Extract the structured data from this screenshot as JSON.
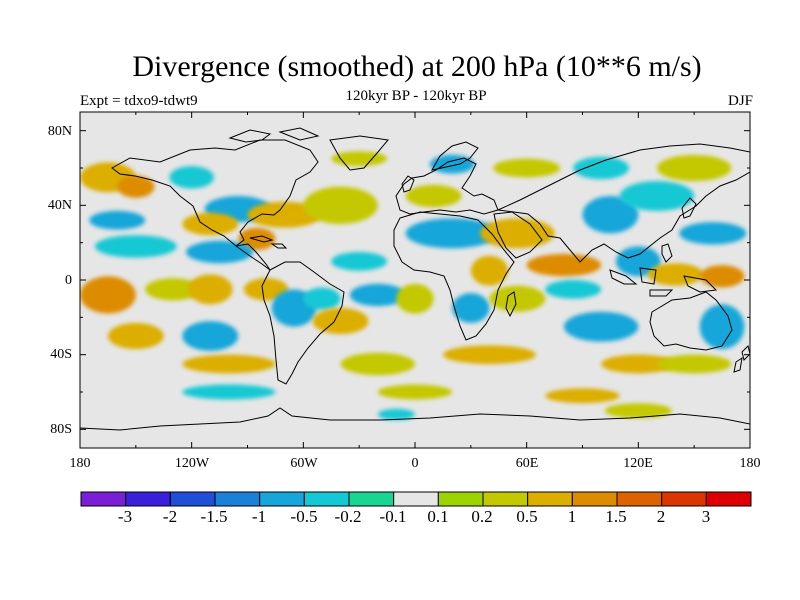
{
  "title": "Divergence (smoothed) at 200 hPa (10**6 m/s)",
  "subtitle": "120kyr BP - 120kyr BP",
  "experiment": "Expt = tdxo9-tdwt9",
  "season": "DJF",
  "map": {
    "projection": "cylindrical-equidistant",
    "lon_range": [
      -180,
      180
    ],
    "lat_range": [
      -90,
      90
    ],
    "background_color": "#e6e6e6",
    "coastline_color": "#000000",
    "lat_tick_labels": [
      "80N",
      "40N",
      "0",
      "40S",
      "80S"
    ],
    "lon_tick_labels": [
      "180",
      "120W",
      "60W",
      "0",
      "60E",
      "120E",
      "180"
    ]
  },
  "colorbar": {
    "labels": [
      "-3",
      "-2",
      "-1.5",
      "-1",
      "-0.5",
      "-0.2",
      "-0.1",
      "0.1",
      "0.2",
      "0.5",
      "1",
      "1.5",
      "2",
      "3"
    ],
    "colors": [
      "#7a1fd6",
      "#3a1fdb",
      "#1e4fd6",
      "#1c80db",
      "#16a6d9",
      "#14c8d4",
      "#19d493",
      "#e6e6e6",
      "#9bd400",
      "#c4c800",
      "#dcae00",
      "#dd8c00",
      "#dc6400",
      "#db3600",
      "#dc0000"
    ]
  },
  "field_blobs": [
    {
      "lon": -165,
      "lat": 55,
      "rx": 15,
      "ry": 8,
      "level": 10
    },
    {
      "lon": -150,
      "lat": 50,
      "rx": 10,
      "ry": 6,
      "level": 11
    },
    {
      "lon": -120,
      "lat": 55,
      "rx": 12,
      "ry": 6,
      "level": 5
    },
    {
      "lon": -95,
      "lat": 38,
      "rx": 18,
      "ry": 7,
      "level": 4
    },
    {
      "lon": -160,
      "lat": 32,
      "rx": 15,
      "ry": 5,
      "level": 4
    },
    {
      "lon": -110,
      "lat": 30,
      "rx": 15,
      "ry": 6,
      "level": 10
    },
    {
      "lon": -70,
      "lat": 35,
      "rx": 20,
      "ry": 7,
      "level": 10
    },
    {
      "lon": -85,
      "lat": 22,
      "rx": 10,
      "ry": 6,
      "level": 11
    },
    {
      "lon": -40,
      "lat": 40,
      "rx": 20,
      "ry": 10,
      "level": 9
    },
    {
      "lon": -150,
      "lat": 18,
      "rx": 22,
      "ry": 6,
      "level": 5
    },
    {
      "lon": -105,
      "lat": 15,
      "rx": 18,
      "ry": 6,
      "level": 4
    },
    {
      "lon": -165,
      "lat": -8,
      "rx": 15,
      "ry": 10,
      "level": 11
    },
    {
      "lon": -130,
      "lat": -5,
      "rx": 15,
      "ry": 6,
      "level": 9
    },
    {
      "lon": -150,
      "lat": -30,
      "rx": 15,
      "ry": 7,
      "level": 10
    },
    {
      "lon": -110,
      "lat": -30,
      "rx": 15,
      "ry": 8,
      "level": 4
    },
    {
      "lon": -110,
      "lat": -5,
      "rx": 12,
      "ry": 8,
      "level": 10
    },
    {
      "lon": -80,
      "lat": -5,
      "rx": 12,
      "ry": 6,
      "level": 10
    },
    {
      "lon": -65,
      "lat": -15,
      "rx": 12,
      "ry": 10,
      "level": 4
    },
    {
      "lon": -50,
      "lat": -10,
      "rx": 10,
      "ry": 6,
      "level": 5
    },
    {
      "lon": -40,
      "lat": -22,
      "rx": 15,
      "ry": 7,
      "level": 10
    },
    {
      "lon": -20,
      "lat": -8,
      "rx": 15,
      "ry": 6,
      "level": 4
    },
    {
      "lon": -30,
      "lat": 10,
      "rx": 15,
      "ry": 5,
      "level": 5
    },
    {
      "lon": 0,
      "lat": -10,
      "rx": 10,
      "ry": 8,
      "level": 9
    },
    {
      "lon": 20,
      "lat": 25,
      "rx": 25,
      "ry": 8,
      "level": 4
    },
    {
      "lon": 10,
      "lat": 45,
      "rx": 15,
      "ry": 6,
      "level": 9
    },
    {
      "lon": 55,
      "lat": 25,
      "rx": 20,
      "ry": 8,
      "level": 10
    },
    {
      "lon": 40,
      "lat": 5,
      "rx": 10,
      "ry": 8,
      "level": 10
    },
    {
      "lon": 30,
      "lat": -15,
      "rx": 10,
      "ry": 8,
      "level": 4
    },
    {
      "lon": 55,
      "lat": -10,
      "rx": 15,
      "ry": 7,
      "level": 9
    },
    {
      "lon": 80,
      "lat": 8,
      "rx": 20,
      "ry": 6,
      "level": 11
    },
    {
      "lon": 85,
      "lat": -5,
      "rx": 15,
      "ry": 5,
      "level": 5
    },
    {
      "lon": 100,
      "lat": -25,
      "rx": 20,
      "ry": 8,
      "level": 4
    },
    {
      "lon": 105,
      "lat": 35,
      "rx": 15,
      "ry": 10,
      "level": 4
    },
    {
      "lon": 130,
      "lat": 45,
      "rx": 20,
      "ry": 8,
      "level": 5
    },
    {
      "lon": 120,
      "lat": 10,
      "rx": 12,
      "ry": 8,
      "level": 4
    },
    {
      "lon": 140,
      "lat": 3,
      "rx": 15,
      "ry": 6,
      "level": 10
    },
    {
      "lon": 165,
      "lat": 2,
      "rx": 12,
      "ry": 6,
      "level": 11
    },
    {
      "lon": 160,
      "lat": 25,
      "rx": 18,
      "ry": 6,
      "level": 4
    },
    {
      "lon": 165,
      "lat": -25,
      "rx": 12,
      "ry": 12,
      "level": 4
    },
    {
      "lon": 150,
      "lat": 60,
      "rx": 20,
      "ry": 7,
      "level": 9
    },
    {
      "lon": 100,
      "lat": 60,
      "rx": 15,
      "ry": 6,
      "level": 5
    },
    {
      "lon": 60,
      "lat": 60,
      "rx": 18,
      "ry": 5,
      "level": 9
    },
    {
      "lon": 20,
      "lat": 62,
      "rx": 12,
      "ry": 5,
      "level": 4
    },
    {
      "lon": -30,
      "lat": 65,
      "rx": 15,
      "ry": 4,
      "level": 9
    },
    {
      "lon": 40,
      "lat": -40,
      "rx": 25,
      "ry": 5,
      "level": 10
    },
    {
      "lon": -20,
      "lat": -45,
      "rx": 20,
      "ry": 6,
      "level": 9
    },
    {
      "lon": -100,
      "lat": -45,
      "rx": 25,
      "ry": 5,
      "level": 10
    },
    {
      "lon": 120,
      "lat": -45,
      "rx": 20,
      "ry": 5,
      "level": 10
    },
    {
      "lon": 150,
      "lat": -45,
      "rx": 20,
      "ry": 5,
      "level": 9
    },
    {
      "lon": -100,
      "lat": -60,
      "rx": 25,
      "ry": 4,
      "level": 5
    },
    {
      "lon": 0,
      "lat": -60,
      "rx": 20,
      "ry": 4,
      "level": 9
    },
    {
      "lon": 90,
      "lat": -62,
      "rx": 20,
      "ry": 4,
      "level": 10
    },
    {
      "lon": 120,
      "lat": -70,
      "rx": 18,
      "ry": 4,
      "level": 9
    },
    {
      "lon": -10,
      "lat": -72,
      "rx": 10,
      "ry": 3,
      "level": 5
    }
  ]
}
